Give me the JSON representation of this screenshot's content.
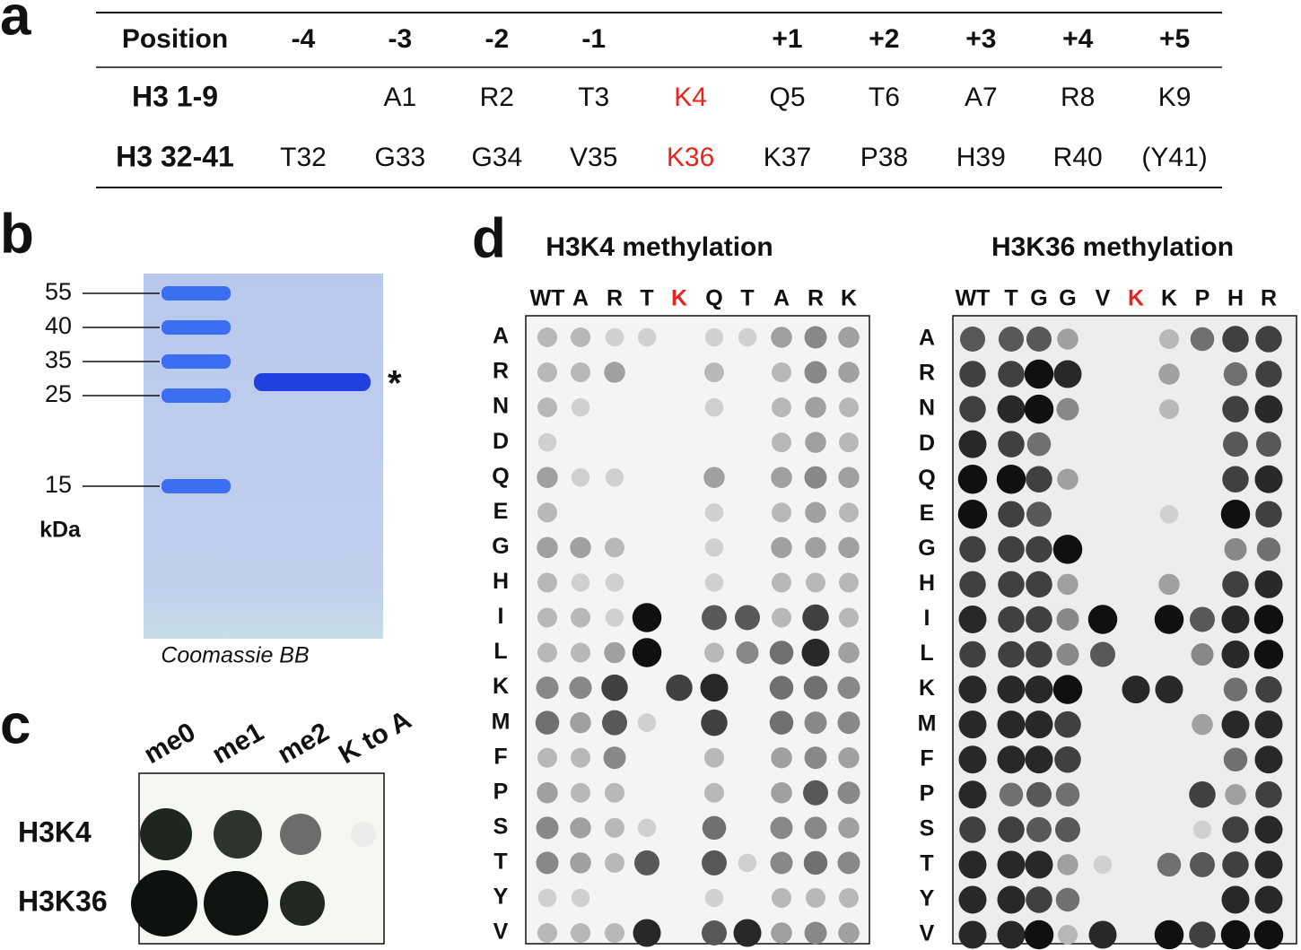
{
  "panel_a": {
    "label": "a",
    "header": [
      "Position",
      "-4",
      "-3",
      "-2",
      "-1",
      null,
      "+1",
      "+2",
      "+3",
      "+4",
      "+5"
    ],
    "rows": [
      {
        "label": "H3 1-9",
        "cells": [
          null,
          "A1",
          "R2",
          "T3",
          "K4",
          "Q5",
          "T6",
          "A7",
          "R8",
          "K9"
        ]
      },
      {
        "label": "H3 32-41",
        "cells": [
          "T32",
          "G33",
          "G34",
          "V35",
          "K36",
          "K37",
          "P38",
          "H39",
          "R40",
          "(Y41)"
        ]
      }
    ]
  },
  "panel_b": {
    "label": "b",
    "markers": [
      "55",
      "40",
      "35",
      "25",
      "15"
    ],
    "unit": "kDa",
    "band_label": "*",
    "caption": "Coomassie BB"
  },
  "panel_c": {
    "label": "c",
    "columns": [
      "me0",
      "me1",
      "me2",
      "K to A"
    ],
    "rows": [
      "H3K4",
      "H3K36"
    ]
  },
  "panel_d": {
    "label": "d",
    "blots": [
      {
        "title": "H3K4 methylation",
        "columns": [
          "WT",
          "A",
          "R",
          "T",
          "K",
          "Q",
          "T",
          "A",
          "R",
          "K"
        ],
        "rows": [
          "A",
          "R",
          "N",
          "D",
          "Q",
          "E",
          "G",
          "H",
          "I",
          "L",
          "K",
          "M",
          "F",
          "P",
          "S",
          "T",
          "Y",
          "V"
        ]
      },
      {
        "title": "H3K36 methylation",
        "columns": [
          "WT",
          "T",
          "G",
          "G",
          "V",
          "K",
          "K",
          "P",
          "H",
          "R"
        ],
        "rows": [
          "A",
          "R",
          "N",
          "D",
          "Q",
          "E",
          "G",
          "H",
          "I",
          "L",
          "K",
          "M",
          "F",
          "P",
          "S",
          "T",
          "Y",
          "V"
        ]
      }
    ]
  }
}
